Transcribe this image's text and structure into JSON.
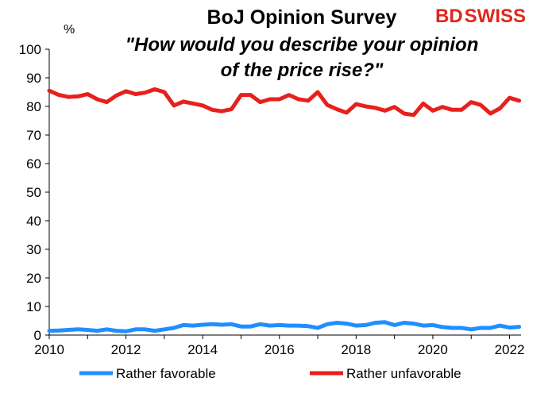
{
  "chart_data": {
    "type": "line",
    "title": "BoJ Opinion Survey",
    "subtitle_lines": [
      "\"How would you describe your opinion",
      "of the price rise?\""
    ],
    "y_unit": "%",
    "xlim": [
      2010,
      2022.3
    ],
    "ylim": [
      0,
      100
    ],
    "x_ticks": [
      2010,
      2012,
      2014,
      2016,
      2018,
      2020,
      2022
    ],
    "y_ticks": [
      0,
      10,
      20,
      30,
      40,
      50,
      60,
      70,
      80,
      90,
      100
    ],
    "grid": false,
    "legend_position": "bottom",
    "logo": {
      "part1": "BD",
      "part2": "SWISS",
      "color": "#e1261c"
    },
    "series": [
      {
        "name": "Rather favorable",
        "color": "#1f8fff",
        "x": [
          2010.0,
          2010.25,
          2010.5,
          2010.75,
          2011.0,
          2011.25,
          2011.5,
          2011.75,
          2012.0,
          2012.25,
          2012.5,
          2012.75,
          2013.0,
          2013.25,
          2013.5,
          2013.75,
          2014.0,
          2014.25,
          2014.5,
          2014.75,
          2015.0,
          2015.25,
          2015.5,
          2015.75,
          2016.0,
          2016.25,
          2016.5,
          2016.75,
          2017.0,
          2017.25,
          2017.5,
          2017.75,
          2018.0,
          2018.25,
          2018.5,
          2018.75,
          2019.0,
          2019.25,
          2019.5,
          2019.75,
          2020.0,
          2020.25,
          2020.5,
          2020.75,
          2021.0,
          2021.25,
          2021.5,
          2021.75,
          2022.0,
          2022.25
        ],
        "values": [
          1.5,
          1.6,
          1.8,
          2.0,
          1.8,
          1.5,
          2.0,
          1.5,
          1.3,
          2.0,
          2.0,
          1.5,
          2.0,
          2.5,
          3.5,
          3.3,
          3.6,
          3.8,
          3.6,
          3.8,
          3.0,
          3.0,
          3.8,
          3.3,
          3.5,
          3.3,
          3.3,
          3.1,
          2.5,
          3.8,
          4.3,
          4.0,
          3.3,
          3.5,
          4.3,
          4.5,
          3.5,
          4.3,
          4.0,
          3.3,
          3.5,
          2.8,
          2.5,
          2.5,
          2.0,
          2.5,
          2.5,
          3.3,
          2.6,
          2.9
        ]
      },
      {
        "name": "Rather unfavorable",
        "color": "#e8201c",
        "x": [
          2010.0,
          2010.25,
          2010.5,
          2010.75,
          2011.0,
          2011.25,
          2011.5,
          2011.75,
          2012.0,
          2012.25,
          2012.5,
          2012.75,
          2013.0,
          2013.25,
          2013.5,
          2013.75,
          2014.0,
          2014.25,
          2014.5,
          2014.75,
          2015.0,
          2015.25,
          2015.5,
          2015.75,
          2016.0,
          2016.25,
          2016.5,
          2016.75,
          2017.0,
          2017.25,
          2017.5,
          2017.75,
          2018.0,
          2018.25,
          2018.5,
          2018.75,
          2019.0,
          2019.25,
          2019.5,
          2019.75,
          2020.0,
          2020.25,
          2020.5,
          2020.75,
          2021.0,
          2021.25,
          2021.5,
          2021.75,
          2022.0,
          2022.25
        ],
        "values": [
          85.5,
          84.0,
          83.3,
          83.5,
          84.3,
          82.5,
          81.5,
          83.8,
          85.3,
          84.3,
          84.8,
          86.0,
          85.0,
          80.3,
          81.7,
          81.0,
          80.3,
          78.8,
          78.3,
          79.0,
          84.0,
          84.0,
          81.5,
          82.5,
          82.5,
          84.0,
          82.5,
          82.0,
          85.0,
          80.5,
          79.0,
          77.8,
          80.8,
          80.0,
          79.5,
          78.5,
          79.8,
          77.5,
          77.0,
          81.0,
          78.5,
          79.8,
          78.8,
          78.8,
          81.5,
          80.5,
          77.5,
          79.3,
          83.0,
          82.0
        ]
      }
    ]
  }
}
